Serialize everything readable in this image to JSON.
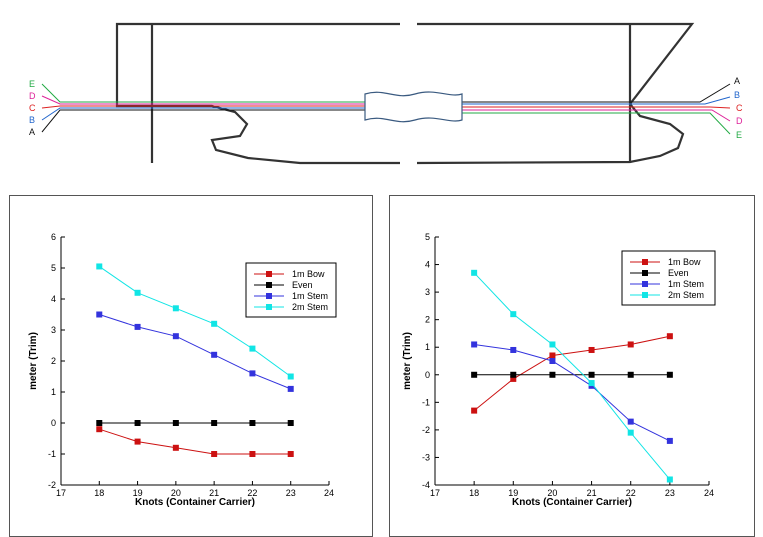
{
  "diagram": {
    "left_labels": [
      {
        "text": "E",
        "color": "#22aa44"
      },
      {
        "text": "D",
        "color": "#dd2299"
      },
      {
        "text": "C",
        "color": "#dd2222"
      },
      {
        "text": "B",
        "color": "#2266cc"
      },
      {
        "text": "A",
        "color": "#111111"
      }
    ],
    "right_labels": [
      {
        "text": "A",
        "color": "#111111"
      },
      {
        "text": "B",
        "color": "#2266cc"
      },
      {
        "text": "C",
        "color": "#dd2222"
      },
      {
        "text": "D",
        "color": "#dd2299"
      },
      {
        "text": "E",
        "color": "#22aa44"
      }
    ]
  },
  "chart_data": [
    {
      "type": "line",
      "title": "",
      "xlabel": "Knots (Container Carrier)",
      "ylabel": "meter (Trim)",
      "xlim": [
        17,
        24
      ],
      "ylim": [
        -2,
        6
      ],
      "xticks": [
        17,
        18,
        19,
        20,
        21,
        22,
        23,
        24
      ],
      "yticks": [
        -2,
        -1,
        0,
        1,
        2,
        3,
        4,
        5,
        6
      ],
      "legend": "top-right",
      "x": [
        18,
        19,
        20,
        21,
        22,
        23
      ],
      "series": [
        {
          "name": "1m Bow",
          "color": "#cc1111",
          "values": [
            -0.2,
            -0.6,
            -0.8,
            -1.0,
            -1.0,
            -1.0
          ]
        },
        {
          "name": "Even",
          "color": "#000000",
          "values": [
            0,
            0,
            0,
            0,
            0,
            0
          ]
        },
        {
          "name": "1m Stem",
          "color": "#3333dd",
          "values": [
            3.5,
            3.1,
            2.8,
            2.2,
            1.6,
            1.1
          ]
        },
        {
          "name": "2m Stem",
          "color": "#11e5e5",
          "values": [
            5.05,
            4.2,
            3.7,
            3.2,
            2.4,
            1.5
          ]
        }
      ]
    },
    {
      "type": "line",
      "title": "",
      "xlabel": "Knots (Container Carrier)",
      "ylabel": "meter (Trim)",
      "xlim": [
        17,
        24
      ],
      "ylim": [
        -4,
        5
      ],
      "xticks": [
        17,
        18,
        19,
        20,
        21,
        22,
        23,
        24
      ],
      "yticks": [
        -4,
        -3,
        -2,
        -1,
        0,
        1,
        2,
        3,
        4,
        5
      ],
      "legend": "top-right",
      "x": [
        18,
        19,
        20,
        21,
        22,
        23
      ],
      "series": [
        {
          "name": "1m Bow",
          "color": "#cc1111",
          "values": [
            -1.3,
            -0.15,
            0.7,
            0.9,
            1.1,
            1.4
          ]
        },
        {
          "name": "Even",
          "color": "#000000",
          "values": [
            0,
            0,
            0,
            0,
            0,
            0
          ]
        },
        {
          "name": "1m Stem",
          "color": "#3333dd",
          "values": [
            1.1,
            0.9,
            0.5,
            -0.4,
            -1.7,
            -2.4
          ]
        },
        {
          "name": "2m Stem",
          "color": "#11e5e5",
          "values": [
            3.7,
            2.2,
            1.1,
            -0.3,
            -2.1,
            -3.8
          ]
        }
      ]
    }
  ]
}
